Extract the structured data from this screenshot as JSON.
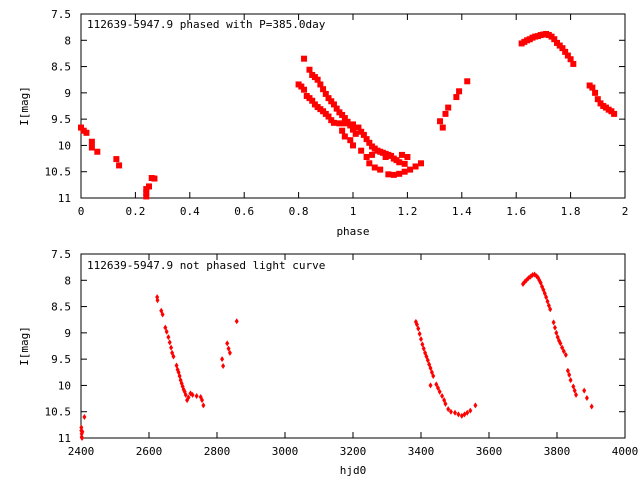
{
  "colors": {
    "points": "#ff0000",
    "axis": "#000000",
    "background": "#ffffff"
  },
  "chart_data": [
    {
      "type": "scatter",
      "title": "112639-5947.9 phased with P=385.0day",
      "xlabel": "phase",
      "ylabel": "I[mag]",
      "xlim": [
        0,
        2
      ],
      "ylim": [
        7.5,
        11
      ],
      "y_inverted": true,
      "grid": false,
      "legend": "none",
      "x_ticks": [
        "0",
        "0.2",
        "0.4",
        "0.6",
        "0.8",
        "1",
        "1.2",
        "1.4",
        "1.6",
        "1.8",
        "2"
      ],
      "y_ticks": [
        "7.5",
        "8",
        "8.5",
        "9",
        "9.5",
        "10",
        "10.5",
        "11"
      ],
      "series": [
        {
          "color": "#ff0000",
          "marker": "square",
          "points": [
            [
              0.0,
              9.66
            ],
            [
              0.01,
              9.72
            ],
            [
              0.02,
              9.76
            ],
            [
              0.04,
              9.93
            ],
            [
              0.04,
              10.04
            ],
            [
              0.06,
              10.12
            ],
            [
              0.13,
              10.26
            ],
            [
              0.14,
              10.38
            ],
            [
              0.24,
              10.83
            ],
            [
              0.24,
              10.9
            ],
            [
              0.24,
              10.97
            ],
            [
              0.25,
              10.78
            ],
            [
              0.26,
              10.62
            ],
            [
              0.27,
              10.63
            ],
            [
              0.8,
              8.84
            ],
            [
              0.81,
              8.88
            ],
            [
              0.82,
              8.35
            ],
            [
              0.82,
              8.94
            ],
            [
              0.83,
              9.06
            ],
            [
              0.84,
              8.56
            ],
            [
              0.84,
              9.1
            ],
            [
              0.85,
              9.15
            ],
            [
              0.85,
              8.66
            ],
            [
              0.86,
              9.22
            ],
            [
              0.86,
              8.7
            ],
            [
              0.87,
              9.27
            ],
            [
              0.87,
              8.75
            ],
            [
              0.88,
              9.31
            ],
            [
              0.88,
              8.84
            ],
            [
              0.89,
              9.35
            ],
            [
              0.89,
              8.93
            ],
            [
              0.9,
              9.4
            ],
            [
              0.9,
              9.02
            ],
            [
              0.91,
              9.45
            ],
            [
              0.91,
              9.1
            ],
            [
              0.92,
              9.52
            ],
            [
              0.92,
              9.16
            ],
            [
              0.93,
              9.57
            ],
            [
              0.93,
              9.22
            ],
            [
              0.94,
              9.3
            ],
            [
              0.95,
              9.58
            ],
            [
              0.95,
              9.37
            ],
            [
              0.96,
              9.42
            ],
            [
              0.97,
              9.48
            ],
            [
              0.97,
              9.58
            ],
            [
              0.98,
              9.55
            ],
            [
              0.99,
              9.62
            ],
            [
              1.0,
              9.7
            ],
            [
              1.01,
              9.78
            ],
            [
              0.96,
              9.72
            ],
            [
              0.97,
              9.83
            ],
            [
              0.99,
              9.9
            ],
            [
              1.0,
              10.0
            ],
            [
              1.0,
              9.6
            ],
            [
              1.02,
              9.66
            ],
            [
              1.03,
              9.74
            ],
            [
              1.04,
              9.8
            ],
            [
              1.05,
              9.88
            ],
            [
              1.06,
              9.95
            ],
            [
              1.07,
              10.02
            ],
            [
              1.08,
              10.06
            ],
            [
              1.09,
              10.1
            ],
            [
              1.1,
              10.12
            ],
            [
              1.11,
              10.14
            ],
            [
              1.12,
              10.16
            ],
            [
              1.13,
              10.18
            ],
            [
              1.14,
              10.2
            ],
            [
              1.15,
              10.25
            ],
            [
              1.16,
              10.28
            ],
            [
              1.17,
              10.32
            ],
            [
              1.19,
              10.35
            ],
            [
              1.03,
              10.1
            ],
            [
              1.05,
              10.22
            ],
            [
              1.06,
              10.34
            ],
            [
              1.08,
              10.42
            ],
            [
              1.1,
              10.46
            ],
            [
              1.13,
              10.55
            ],
            [
              1.15,
              10.56
            ],
            [
              1.17,
              10.54
            ],
            [
              1.19,
              10.5
            ],
            [
              1.21,
              10.46
            ],
            [
              1.23,
              10.4
            ],
            [
              1.25,
              10.34
            ],
            [
              1.07,
              10.18
            ],
            [
              1.12,
              10.22
            ],
            [
              1.18,
              10.18
            ],
            [
              1.2,
              10.22
            ],
            [
              1.32,
              9.54
            ],
            [
              1.33,
              9.66
            ],
            [
              1.34,
              9.4
            ],
            [
              1.35,
              9.28
            ],
            [
              1.38,
              9.08
            ],
            [
              1.39,
              8.97
            ],
            [
              1.42,
              8.78
            ],
            [
              1.62,
              8.06
            ],
            [
              1.63,
              8.03
            ],
            [
              1.64,
              8.0
            ],
            [
              1.65,
              7.98
            ],
            [
              1.66,
              7.95
            ],
            [
              1.67,
              7.93
            ],
            [
              1.68,
              7.92
            ],
            [
              1.69,
              7.9
            ],
            [
              1.7,
              7.89
            ],
            [
              1.71,
              7.88
            ],
            [
              1.72,
              7.9
            ],
            [
              1.73,
              7.93
            ],
            [
              1.74,
              7.98
            ],
            [
              1.75,
              8.05
            ],
            [
              1.76,
              8.1
            ],
            [
              1.77,
              8.15
            ],
            [
              1.78,
              8.22
            ],
            [
              1.79,
              8.29
            ],
            [
              1.8,
              8.36
            ],
            [
              1.81,
              8.45
            ],
            [
              1.87,
              8.86
            ],
            [
              1.88,
              8.9
            ],
            [
              1.89,
              9.0
            ],
            [
              1.9,
              9.12
            ],
            [
              1.91,
              9.2
            ],
            [
              1.92,
              9.25
            ],
            [
              1.93,
              9.28
            ],
            [
              1.94,
              9.32
            ],
            [
              1.95,
              9.35
            ],
            [
              1.96,
              9.4
            ]
          ]
        }
      ]
    },
    {
      "type": "scatter",
      "title": "112639-5947.9 not phased light curve",
      "xlabel": "hjd0",
      "ylabel": "I[mag]",
      "xlim": [
        2400,
        4000
      ],
      "ylim": [
        7.5,
        11
      ],
      "y_inverted": true,
      "grid": false,
      "legend": "none",
      "x_ticks": [
        "2400",
        "2600",
        "2800",
        "3000",
        "3200",
        "3400",
        "3600",
        "3800",
        "4000"
      ],
      "y_ticks": [
        "7.5",
        "8",
        "8.5",
        "9",
        "9.5",
        "10",
        "10.5",
        "11"
      ],
      "series": [
        {
          "color": "#ff0000",
          "marker": "diamond",
          "points": [
            [
              2401,
              10.8
            ],
            [
              2401,
              10.86
            ],
            [
              2402,
              10.92
            ],
            [
              2402,
              10.98
            ],
            [
              2403,
              11.0
            ],
            [
              2404,
              10.88
            ],
            [
              2410,
              10.6
            ],
            [
              2624,
              8.32
            ],
            [
              2625,
              8.38
            ],
            [
              2636,
              8.58
            ],
            [
              2640,
              8.65
            ],
            [
              2648,
              8.9
            ],
            [
              2652,
              8.98
            ],
            [
              2657,
              9.08
            ],
            [
              2661,
              9.18
            ],
            [
              2665,
              9.28
            ],
            [
              2668,
              9.38
            ],
            [
              2672,
              9.45
            ],
            [
              2681,
              9.62
            ],
            [
              2684,
              9.7
            ],
            [
              2687,
              9.75
            ],
            [
              2690,
              9.82
            ],
            [
              2693,
              9.9
            ],
            [
              2696,
              9.96
            ],
            [
              2699,
              10.02
            ],
            [
              2702,
              10.08
            ],
            [
              2705,
              10.12
            ],
            [
              2708,
              10.18
            ],
            [
              2712,
              10.28
            ],
            [
              2716,
              10.23
            ],
            [
              2722,
              10.15
            ],
            [
              2728,
              10.18
            ],
            [
              2740,
              10.2
            ],
            [
              2752,
              10.22
            ],
            [
              2756,
              10.28
            ],
            [
              2760,
              10.38
            ],
            [
              2815,
              9.5
            ],
            [
              2818,
              9.63
            ],
            [
              2830,
              9.2
            ],
            [
              2834,
              9.3
            ],
            [
              2838,
              9.38
            ],
            [
              2858,
              8.78
            ],
            [
              3385,
              8.79
            ],
            [
              3388,
              8.84
            ],
            [
              3392,
              8.92
            ],
            [
              3396,
              9.02
            ],
            [
              3400,
              9.12
            ],
            [
              3404,
              9.22
            ],
            [
              3408,
              9.3
            ],
            [
              3412,
              9.38
            ],
            [
              3416,
              9.45
            ],
            [
              3420,
              9.52
            ],
            [
              3424,
              9.6
            ],
            [
              3428,
              9.67
            ],
            [
              3432,
              9.75
            ],
            [
              3436,
              9.82
            ],
            [
              3428,
              10.0
            ],
            [
              3445,
              9.98
            ],
            [
              3450,
              10.05
            ],
            [
              3455,
              10.12
            ],
            [
              3462,
              10.2
            ],
            [
              3468,
              10.28
            ],
            [
              3472,
              10.35
            ],
            [
              3480,
              10.45
            ],
            [
              3488,
              10.5
            ],
            [
              3500,
              10.52
            ],
            [
              3510,
              10.55
            ],
            [
              3520,
              10.58
            ],
            [
              3528,
              10.55
            ],
            [
              3536,
              10.52
            ],
            [
              3545,
              10.48
            ],
            [
              3560,
              10.38
            ],
            [
              3700,
              8.07
            ],
            [
              3705,
              8.03
            ],
            [
              3710,
              8.0
            ],
            [
              3716,
              7.96
            ],
            [
              3722,
              7.93
            ],
            [
              3728,
              7.9
            ],
            [
              3734,
              7.89
            ],
            [
              3740,
              7.92
            ],
            [
              3744,
              7.95
            ],
            [
              3748,
              8.0
            ],
            [
              3752,
              8.05
            ],
            [
              3756,
              8.12
            ],
            [
              3760,
              8.18
            ],
            [
              3764,
              8.25
            ],
            [
              3768,
              8.32
            ],
            [
              3772,
              8.4
            ],
            [
              3776,
              8.48
            ],
            [
              3780,
              8.55
            ],
            [
              3790,
              8.8
            ],
            [
              3794,
              8.9
            ],
            [
              3798,
              9.0
            ],
            [
              3802,
              9.08
            ],
            [
              3806,
              9.15
            ],
            [
              3810,
              9.2
            ],
            [
              3815,
              9.28
            ],
            [
              3820,
              9.35
            ],
            [
              3826,
              9.42
            ],
            [
              3832,
              9.72
            ],
            [
              3836,
              9.8
            ],
            [
              3840,
              9.9
            ],
            [
              3848,
              10.02
            ],
            [
              3852,
              10.1
            ],
            [
              3856,
              10.18
            ],
            [
              3880,
              10.1
            ],
            [
              3888,
              10.24
            ],
            [
              3902,
              10.4
            ]
          ]
        }
      ]
    }
  ]
}
